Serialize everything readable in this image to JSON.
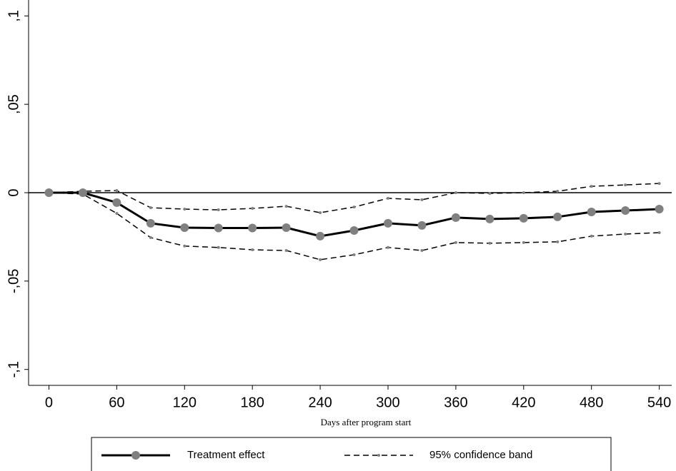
{
  "chart_data": {
    "type": "line",
    "x_label": "Days after program start",
    "x": [
      0,
      30,
      60,
      90,
      120,
      150,
      180,
      210,
      240,
      270,
      300,
      330,
      360,
      390,
      420,
      450,
      480,
      510,
      540
    ],
    "series": [
      {
        "name": "Treatment effect",
        "color": "#000000",
        "marker_color": "#808080",
        "values": [
          0,
          0,
          -0.0056,
          -0.0173,
          -0.0198,
          -0.02,
          -0.02,
          -0.0198,
          -0.0246,
          -0.0214,
          -0.0173,
          -0.0185,
          -0.0141,
          -0.0149,
          -0.0145,
          -0.0137,
          -0.0109,
          -0.0101,
          -0.0093
        ]
      }
    ],
    "confidence_band": {
      "name": "95% confidence band",
      "color": "#000000",
      "marker_color": "#808080",
      "upper": [
        0,
        0.0008,
        0.0012,
        -0.0085,
        -0.0093,
        -0.0097,
        -0.0089,
        -0.0077,
        -0.0113,
        -0.0081,
        -0.0032,
        -0.004,
        0,
        -0.0004,
        0,
        0.0008,
        0.0036,
        0.0044,
        0.0052
      ],
      "lower": [
        0,
        -0.0008,
        -0.0117,
        -0.0254,
        -0.0302,
        -0.031,
        -0.0323,
        -0.0327,
        -0.0379,
        -0.0351,
        -0.031,
        -0.0327,
        -0.0282,
        -0.0286,
        -0.0282,
        -0.0278,
        -0.0246,
        -0.0234,
        -0.0226
      ]
    },
    "reference_line": 0,
    "xlim": [
      -18,
      551
    ],
    "xticks": [
      0,
      60,
      120,
      180,
      240,
      300,
      360,
      420,
      480,
      540
    ],
    "ylim": [
      -0.109,
      0.109
    ],
    "yticks": [
      {
        "value": -0.1,
        "label": "-,1"
      },
      {
        "value": -0.05,
        "label": "-,05"
      },
      {
        "value": 0,
        "label": "0"
      },
      {
        "value": 0.05,
        "label": ",05"
      },
      {
        "value": 0.1,
        "label": ",1"
      }
    ]
  }
}
